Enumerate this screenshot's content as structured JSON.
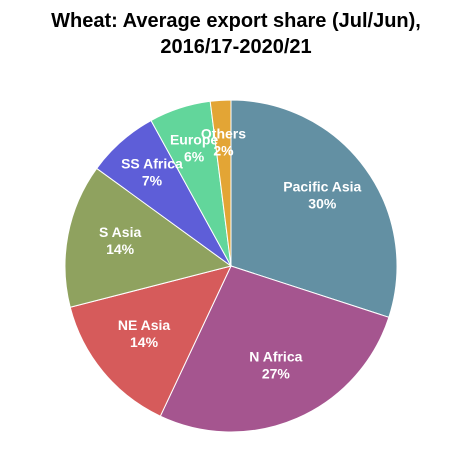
{
  "chart_data": {
    "type": "pie",
    "title": "Wheat: Average export share (Jul/Jun), 2016/17-2020/21",
    "categories": [
      "Pacific Asia",
      "N Africa",
      "NE Asia",
      "S Asia",
      "SS Africa",
      "Europe",
      "Others"
    ],
    "values": [
      30,
      27,
      14,
      14,
      7,
      6,
      2
    ],
    "value_labels": [
      "30%",
      "27%",
      "14%",
      "14%",
      "7%",
      "6%",
      "2%"
    ],
    "colors": [
      "#6390a3",
      "#a5558f",
      "#d65b5b",
      "#8fa25f",
      "#5e5ed8",
      "#62d69b",
      "#e3a535"
    ]
  }
}
